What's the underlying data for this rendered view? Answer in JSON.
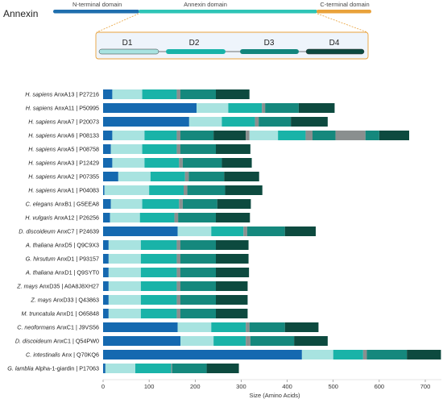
{
  "title": "Annexin",
  "schematic": {
    "domains": [
      {
        "label": "N-terminal domain",
        "color": "#1f6fae"
      },
      {
        "label": "Annexin domain",
        "color": "#2ec4b6"
      },
      {
        "label": "C-terminal domain",
        "color": "#e9a23b"
      }
    ],
    "repeats": [
      {
        "label": "D1",
        "color": "#a8e3e0"
      },
      {
        "label": "D2",
        "color": "#19b3a8"
      },
      {
        "label": "D3",
        "color": "#12857c"
      },
      {
        "label": "D4",
        "color": "#0d4a3f"
      }
    ]
  },
  "colors": {
    "nterm": "#1569b0",
    "d1": "#a8e3e0",
    "d2": "#19b3a8",
    "d3": "#15887d",
    "d4": "#0d4a3f",
    "linker": "#8a8f8f",
    "axis": "#cccccc"
  },
  "chart_data": {
    "type": "bar",
    "orientation": "horizontal-stacked",
    "xlabel": "Size (Amino Acids)",
    "xlim": [
      0,
      735
    ],
    "xticks": [
      0,
      100,
      200,
      300,
      400,
      500,
      600,
      700
    ],
    "segment_order": [
      "nterm",
      "d1",
      "d2",
      "linker",
      "d3",
      "d4",
      "d1",
      "d2",
      "linker",
      "d3",
      "d4"
    ],
    "proteins": [
      {
        "species": "H. sapiens",
        "name": "AnxA13 | P27216",
        "segments": [
          [
            "nterm",
            0,
            20
          ],
          [
            "d1",
            20,
            85
          ],
          [
            "d2",
            85,
            160
          ],
          [
            "linker",
            160,
            168
          ],
          [
            "d3",
            168,
            245
          ],
          [
            "d4",
            245,
            318
          ]
        ]
      },
      {
        "species": "H. sapiens",
        "name": "AnxA11 | P50995",
        "segments": [
          [
            "nterm",
            0,
            203
          ],
          [
            "d1",
            203,
            272
          ],
          [
            "d2",
            272,
            345
          ],
          [
            "linker",
            345,
            352
          ],
          [
            "d3",
            352,
            425
          ],
          [
            "d4",
            425,
            503
          ]
        ]
      },
      {
        "species": "H. sapiens",
        "name": "AnxA7 | P20073",
        "segments": [
          [
            "nterm",
            0,
            187
          ],
          [
            "d1",
            187,
            258
          ],
          [
            "d2",
            258,
            330
          ],
          [
            "linker",
            330,
            338
          ],
          [
            "d3",
            338,
            408
          ],
          [
            "d4",
            408,
            488
          ]
        ]
      },
      {
        "species": "H. sapiens",
        "name": "AnxA6 | P08133",
        "segments": [
          [
            "nterm",
            0,
            20
          ],
          [
            "d1",
            20,
            90
          ],
          [
            "d2",
            90,
            160
          ],
          [
            "linker",
            160,
            168
          ],
          [
            "d3",
            168,
            240
          ],
          [
            "d4",
            240,
            310
          ],
          [
            "linker",
            310,
            318
          ],
          [
            "d1",
            318,
            380
          ],
          [
            "d2",
            380,
            440
          ],
          [
            "linker",
            440,
            455
          ],
          [
            "d3",
            455,
            505
          ],
          [
            "linker",
            505,
            570
          ],
          [
            "d3",
            570,
            600
          ],
          [
            "d4",
            600,
            665
          ]
        ]
      },
      {
        "species": "H. sapiens",
        "name": "AnxA5 | P08758",
        "segments": [
          [
            "nterm",
            0,
            17
          ],
          [
            "d1",
            17,
            85
          ],
          [
            "d2",
            85,
            160
          ],
          [
            "linker",
            160,
            168
          ],
          [
            "d3",
            168,
            245
          ],
          [
            "d4",
            245,
            320
          ]
        ]
      },
      {
        "species": "H. sapiens",
        "name": "AnxA3 | P12429",
        "segments": [
          [
            "nterm",
            0,
            20
          ],
          [
            "d1",
            20,
            90
          ],
          [
            "d2",
            90,
            165
          ],
          [
            "linker",
            165,
            173
          ],
          [
            "d3",
            173,
            258
          ],
          [
            "d4",
            258,
            323
          ]
        ]
      },
      {
        "species": "H. sapiens",
        "name": "AnxA2 | P07355",
        "segments": [
          [
            "nterm",
            0,
            33
          ],
          [
            "d1",
            33,
            103
          ],
          [
            "d2",
            103,
            178
          ],
          [
            "linker",
            178,
            186
          ],
          [
            "d3",
            186,
            263
          ],
          [
            "d4",
            263,
            339
          ]
        ]
      },
      {
        "species": "H. sapiens",
        "name": "AnxA1 | P04083",
        "segments": [
          [
            "nterm",
            0,
            3
          ],
          [
            "d1",
            3,
            100
          ],
          [
            "d2",
            100,
            175
          ],
          [
            "linker",
            175,
            183
          ],
          [
            "d3",
            183,
            265
          ],
          [
            "d4",
            265,
            346
          ]
        ]
      },
      {
        "species": "C. elegans",
        "name": "AnxB1 | G5EEA8",
        "segments": [
          [
            "nterm",
            0,
            17
          ],
          [
            "d1",
            17,
            85
          ],
          [
            "d2",
            85,
            165
          ],
          [
            "linker",
            165,
            173
          ],
          [
            "d3",
            173,
            248
          ],
          [
            "d4",
            248,
            321
          ]
        ]
      },
      {
        "species": "H. vulgaris",
        "name": "AnxA12 | P26256",
        "segments": [
          [
            "nterm",
            0,
            15
          ],
          [
            "d1",
            15,
            80
          ],
          [
            "d2",
            80,
            155
          ],
          [
            "linker",
            155,
            163
          ],
          [
            "d3",
            163,
            245
          ],
          [
            "d4",
            245,
            319
          ]
        ]
      },
      {
        "species": "D. discoideum",
        "name": "AnxC7 | P24639",
        "segments": [
          [
            "nterm",
            0,
            162
          ],
          [
            "d1",
            162,
            235
          ],
          [
            "d2",
            235,
            305
          ],
          [
            "linker",
            305,
            313
          ],
          [
            "d3",
            313,
            395
          ],
          [
            "d4",
            395,
            462
          ]
        ]
      },
      {
        "species": "A. thaliana",
        "name": "AnxD5 | Q9C9X3",
        "segments": [
          [
            "nterm",
            0,
            12
          ],
          [
            "d1",
            12,
            82
          ],
          [
            "d2",
            82,
            160
          ],
          [
            "linker",
            160,
            168
          ],
          [
            "d3",
            168,
            245
          ],
          [
            "d4",
            245,
            316
          ]
        ]
      },
      {
        "species": "G. hirsutum",
        "name": "AnxD1 | P93157",
        "segments": [
          [
            "nterm",
            0,
            12
          ],
          [
            "d1",
            12,
            82
          ],
          [
            "d2",
            82,
            160
          ],
          [
            "linker",
            160,
            168
          ],
          [
            "d3",
            168,
            245
          ],
          [
            "d4",
            245,
            316
          ]
        ]
      },
      {
        "species": "A. thaliana",
        "name": "AnxD1 | Q9SYT0",
        "segments": [
          [
            "nterm",
            0,
            12
          ],
          [
            "d1",
            12,
            82
          ],
          [
            "d2",
            82,
            160
          ],
          [
            "linker",
            160,
            168
          ],
          [
            "d3",
            168,
            245
          ],
          [
            "d4",
            245,
            317
          ]
        ]
      },
      {
        "species": "Z. mays",
        "name": "AnxD35 | A0A8J8XH27",
        "segments": [
          [
            "nterm",
            0,
            12
          ],
          [
            "d1",
            12,
            82
          ],
          [
            "d2",
            82,
            160
          ],
          [
            "linker",
            160,
            168
          ],
          [
            "d3",
            168,
            245
          ],
          [
            "d4",
            245,
            314
          ]
        ]
      },
      {
        "species": "Z. mays",
        "name": "AnxD33 | Q43863",
        "segments": [
          [
            "nterm",
            0,
            12
          ],
          [
            "d1",
            12,
            82
          ],
          [
            "d2",
            82,
            160
          ],
          [
            "linker",
            160,
            168
          ],
          [
            "d3",
            168,
            245
          ],
          [
            "d4",
            245,
            314
          ]
        ]
      },
      {
        "species": "M. truncatula",
        "name": "AnxD1 | O65848",
        "segments": [
          [
            "nterm",
            0,
            12
          ],
          [
            "d1",
            12,
            82
          ],
          [
            "d2",
            82,
            160
          ],
          [
            "linker",
            160,
            168
          ],
          [
            "d3",
            168,
            245
          ],
          [
            "d4",
            245,
            314
          ]
        ]
      },
      {
        "species": "C. neoformans",
        "name": "AnxC1 | J9VS56",
        "segments": [
          [
            "nterm",
            0,
            162
          ],
          [
            "d1",
            162,
            235
          ],
          [
            "d2",
            235,
            310
          ],
          [
            "linker",
            310,
            318
          ],
          [
            "d3",
            318,
            395
          ],
          [
            "d4",
            395,
            468
          ]
        ]
      },
      {
        "species": "D. discoideum",
        "name": "AnxC1 | Q54PW0",
        "segments": [
          [
            "nterm",
            0,
            168
          ],
          [
            "d1",
            168,
            240
          ],
          [
            "d2",
            240,
            310
          ],
          [
            "linker",
            310,
            320
          ],
          [
            "d3",
            320,
            415
          ],
          [
            "d4",
            415,
            488
          ]
        ]
      },
      {
        "species": "C. intestinalis",
        "name": "Anx | Q70KQ6",
        "segments": [
          [
            "nterm",
            0,
            432
          ],
          [
            "d1",
            432,
            500
          ],
          [
            "d2",
            500,
            565
          ],
          [
            "linker",
            565,
            573
          ],
          [
            "d3",
            573,
            660
          ],
          [
            "d4",
            660,
            734
          ]
        ]
      },
      {
        "species": "G. lamblia",
        "name": "Alpha-1-giardin | P17063",
        "segments": [
          [
            "nterm",
            0,
            5
          ],
          [
            "d1",
            5,
            70
          ],
          [
            "d2",
            70,
            148
          ],
          [
            "linker",
            148,
            150
          ],
          [
            "d3",
            150,
            225
          ],
          [
            "d4",
            225,
            295
          ]
        ]
      }
    ]
  }
}
